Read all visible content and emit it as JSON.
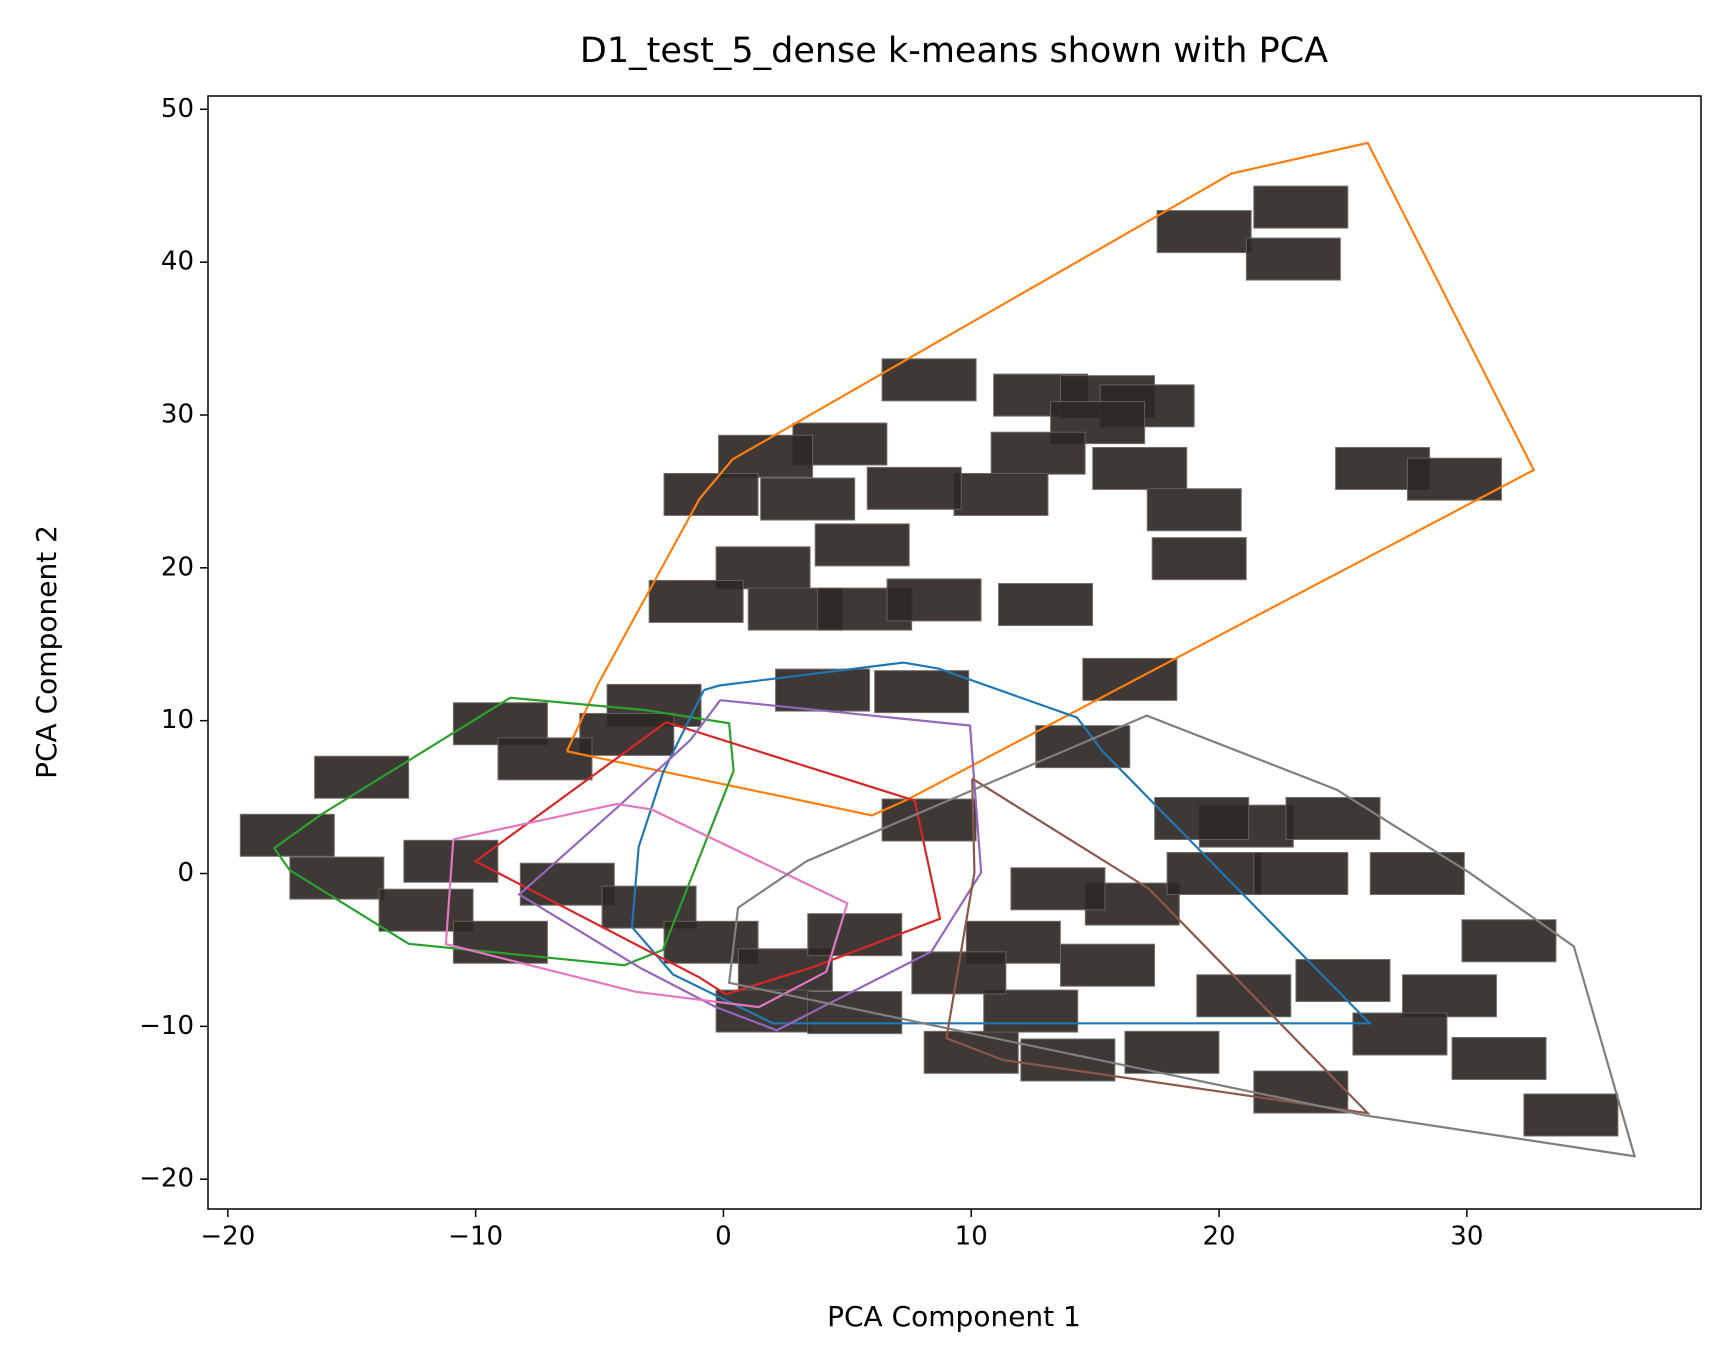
{
  "chart_data": {
    "type": "scatter",
    "title": "D1_test_5_dense k-means shown with PCA",
    "xlabel": "PCA Component 1",
    "ylabel": "PCA Component 2",
    "xlim": [
      -20.8,
      39.45
    ],
    "ylim": [
      -21.95,
      50.87
    ],
    "xticks": [
      {
        "value": -20,
        "label": "−20"
      },
      {
        "value": -10,
        "label": "−10"
      },
      0,
      10,
      20,
      30
    ],
    "yticks": [
      {
        "value": -20,
        "label": "−20"
      },
      {
        "value": -10,
        "label": "−10"
      },
      0,
      10,
      20,
      30,
      40,
      50
    ],
    "points": {
      "color": "#2e2925",
      "x": [
        19.4,
        23.3,
        23.0,
        26.6,
        29.5,
        8.3,
        12.8,
        15.5,
        17.1,
        15.1,
        12.7,
        16.8,
        19.0,
        19.2,
        11.2,
        7.7,
        4.7,
        1.7,
        -0.5,
        3.4,
        5.6,
        1.6,
        -1.1,
        2.9,
        5.7,
        8.5,
        13.0,
        16.4,
        8.0,
        4.0,
        -2.8,
        -3.9,
        -9.0,
        -7.2,
        -14.6,
        -17.6,
        -15.6,
        -12.0,
        -11.0,
        -9.0,
        -6.3,
        -3.0,
        -0.5,
        2.5,
        1.6,
        5.3,
        10.0,
        13.9,
        18.1,
        12.4,
        11.7,
        16.5,
        19.8,
        21.1,
        24.6,
        23.3,
        28.0,
        21.0,
        25.0,
        31.7,
        29.3,
        31.3,
        34.2,
        23.3,
        27.3,
        14.5,
        19.3,
        8.3,
        5.3,
        9.5,
        15.5,
        13.5
      ],
      "y": [
        42,
        43.6,
        40.2,
        26.5,
        25.8,
        32.3,
        31.3,
        31.2,
        30.6,
        29.5,
        27.5,
        26.5,
        23.8,
        20.6,
        24.8,
        25.2,
        28.1,
        27.3,
        24.8,
        24.5,
        21.5,
        20.0,
        17.8,
        17.3,
        17.3,
        17.9,
        17.6,
        12.7,
        11.9,
        12.0,
        11.0,
        9.1,
        9.8,
        7.5,
        6.3,
        2.5,
        -0.3,
        -2.4,
        0.8,
        -4.5,
        -0.7,
        -2.2,
        -4.5,
        -6.3,
        -9.0,
        -9.1,
        -11.7,
        -12.2,
        -11.7,
        -9.0,
        -4.5,
        -2.0,
        0.0,
        3.1,
        3.6,
        0.0,
        0.0,
        -8.0,
        -7.0,
        -4.4,
        -8.0,
        -12.1,
        -15.8,
        -14.3,
        -10.5,
        8.3,
        3.6,
        3.5,
        -4.0,
        -6.5,
        -6.0,
        -1.0
      ]
    },
    "series": [
      {
        "color": "#ff7f0e",
        "x": [
          -6.32,
          -5.07,
          -0.97,
          0.37,
          20.5,
          26.0,
          32.7,
          7.5,
          6.0,
          -6.32
        ],
        "y": [
          8.0,
          12.36,
          24.5,
          27.1,
          45.8,
          47.8,
          26.4,
          4.9,
          3.8,
          8.0
        ]
      },
      {
        "color": "#2ca02c",
        "x": [
          -18.13,
          -17.5,
          -12.7,
          -4.0,
          -2.44,
          0.41,
          0.23,
          -3.2,
          -8.6,
          -16.26,
          -18.13
        ],
        "y": [
          1.66,
          0.22,
          -4.6,
          -6.0,
          -5.0,
          6.72,
          9.83,
          10.7,
          11.5,
          3.83,
          1.66
        ]
      },
      {
        "color": "#1f77b4",
        "x": [
          -0.79,
          -0.17,
          7.27,
          8.7,
          14.27,
          15.3,
          26.08,
          2.0,
          -2.04,
          -3.69,
          -3.42,
          -2.44,
          -0.79
        ],
        "y": [
          12.0,
          12.3,
          13.8,
          13.4,
          10.2,
          8.0,
          -9.8,
          -9.8,
          -6.6,
          -3.5,
          1.74,
          6.6,
          12.0
        ]
      },
      {
        "color": "#d62728",
        "x": [
          -2.31,
          7.72,
          8.74,
          3.7,
          0.1,
          -0.97,
          -10.0,
          -2.31
        ],
        "y": [
          9.9,
          4.77,
          -2.96,
          -6.07,
          -7.9,
          -6.8,
          0.8,
          9.9
        ]
      },
      {
        "color": "#9467bd",
        "x": [
          -0.13,
          9.95,
          10.4,
          8.4,
          4.15,
          2.15,
          -0.3,
          -3.33,
          -8.24,
          -4.22,
          -1.33,
          -0.13
        ],
        "y": [
          11.34,
          9.68,
          0.07,
          -5.1,
          -8.6,
          -10.26,
          -8.74,
          -6.2,
          -1.37,
          4.41,
          8.74,
          11.34
        ]
      },
      {
        "color": "#e377c2",
        "x": [
          -10.9,
          -4.3,
          -2.9,
          5.0,
          4.15,
          1.43,
          -3.56,
          -11.2,
          -10.9
        ],
        "y": [
          2.24,
          4.55,
          4.19,
          -1.95,
          -6.43,
          -8.74,
          -7.73,
          -4.62,
          2.24
        ]
      },
      {
        "color": "#8c564b",
        "x": [
          10.04,
          17.17,
          26.0,
          11.28,
          9.0,
          10.13,
          10.04
        ],
        "y": [
          6.21,
          -1.0,
          -15.68,
          -12.2,
          -10.77,
          0.07,
          6.21
        ]
      },
      {
        "color": "#7f7f7f",
        "x": [
          3.35,
          17.08,
          24.74,
          30.09,
          34.32,
          36.77,
          25.86,
          0.23,
          0.59,
          3.35
        ],
        "y": [
          0.8,
          10.33,
          5.49,
          0.07,
          -4.77,
          -18.5,
          -15.82,
          -7.15,
          -2.24,
          0.8
        ]
      }
    ]
  }
}
